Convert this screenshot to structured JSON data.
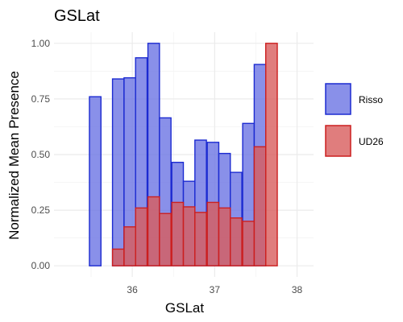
{
  "chart_data": {
    "type": "bar",
    "title": "GSLat",
    "xlabel": "GSLat",
    "ylabel": "Normalized Mean Presence",
    "xlim": [
      35.05,
      38.2
    ],
    "ylim": [
      -0.05,
      1.05
    ],
    "x_ticks": [
      36,
      37,
      38
    ],
    "x_tick_labels": [
      "36",
      "37",
      "38"
    ],
    "y_ticks": [
      0,
      0.25,
      0.5,
      0.75,
      1.0
    ],
    "y_tick_labels": [
      "0.00",
      "0.25",
      "0.50",
      "0.75",
      "1.00"
    ],
    "bin_width": 0.14,
    "grid": true,
    "legend_position": "right",
    "series": [
      {
        "name": "Risso",
        "fill": "#6b74e3",
        "stroke": "#1c2bd1",
        "x": [
          35.55,
          35.83,
          35.97,
          36.11,
          36.26,
          36.4,
          36.55,
          36.69,
          36.83,
          36.98,
          37.12,
          37.26,
          37.41,
          37.55
        ],
        "values": [
          0.76,
          0.84,
          0.845,
          0.935,
          1.0,
          0.665,
          0.465,
          0.38,
          0.565,
          0.555,
          0.505,
          0.42,
          0.64,
          0.905
        ]
      },
      {
        "name": "UD26",
        "fill": "#d85c5c",
        "stroke": "#cc1f1f",
        "x": [
          35.83,
          35.97,
          36.11,
          36.26,
          36.4,
          36.55,
          36.69,
          36.83,
          36.98,
          37.12,
          37.26,
          37.41,
          37.55,
          37.69
        ],
        "values": [
          0.075,
          0.175,
          0.26,
          0.31,
          0.235,
          0.285,
          0.265,
          0.24,
          0.285,
          0.26,
          0.215,
          0.2,
          0.535,
          1.0
        ]
      }
    ]
  }
}
